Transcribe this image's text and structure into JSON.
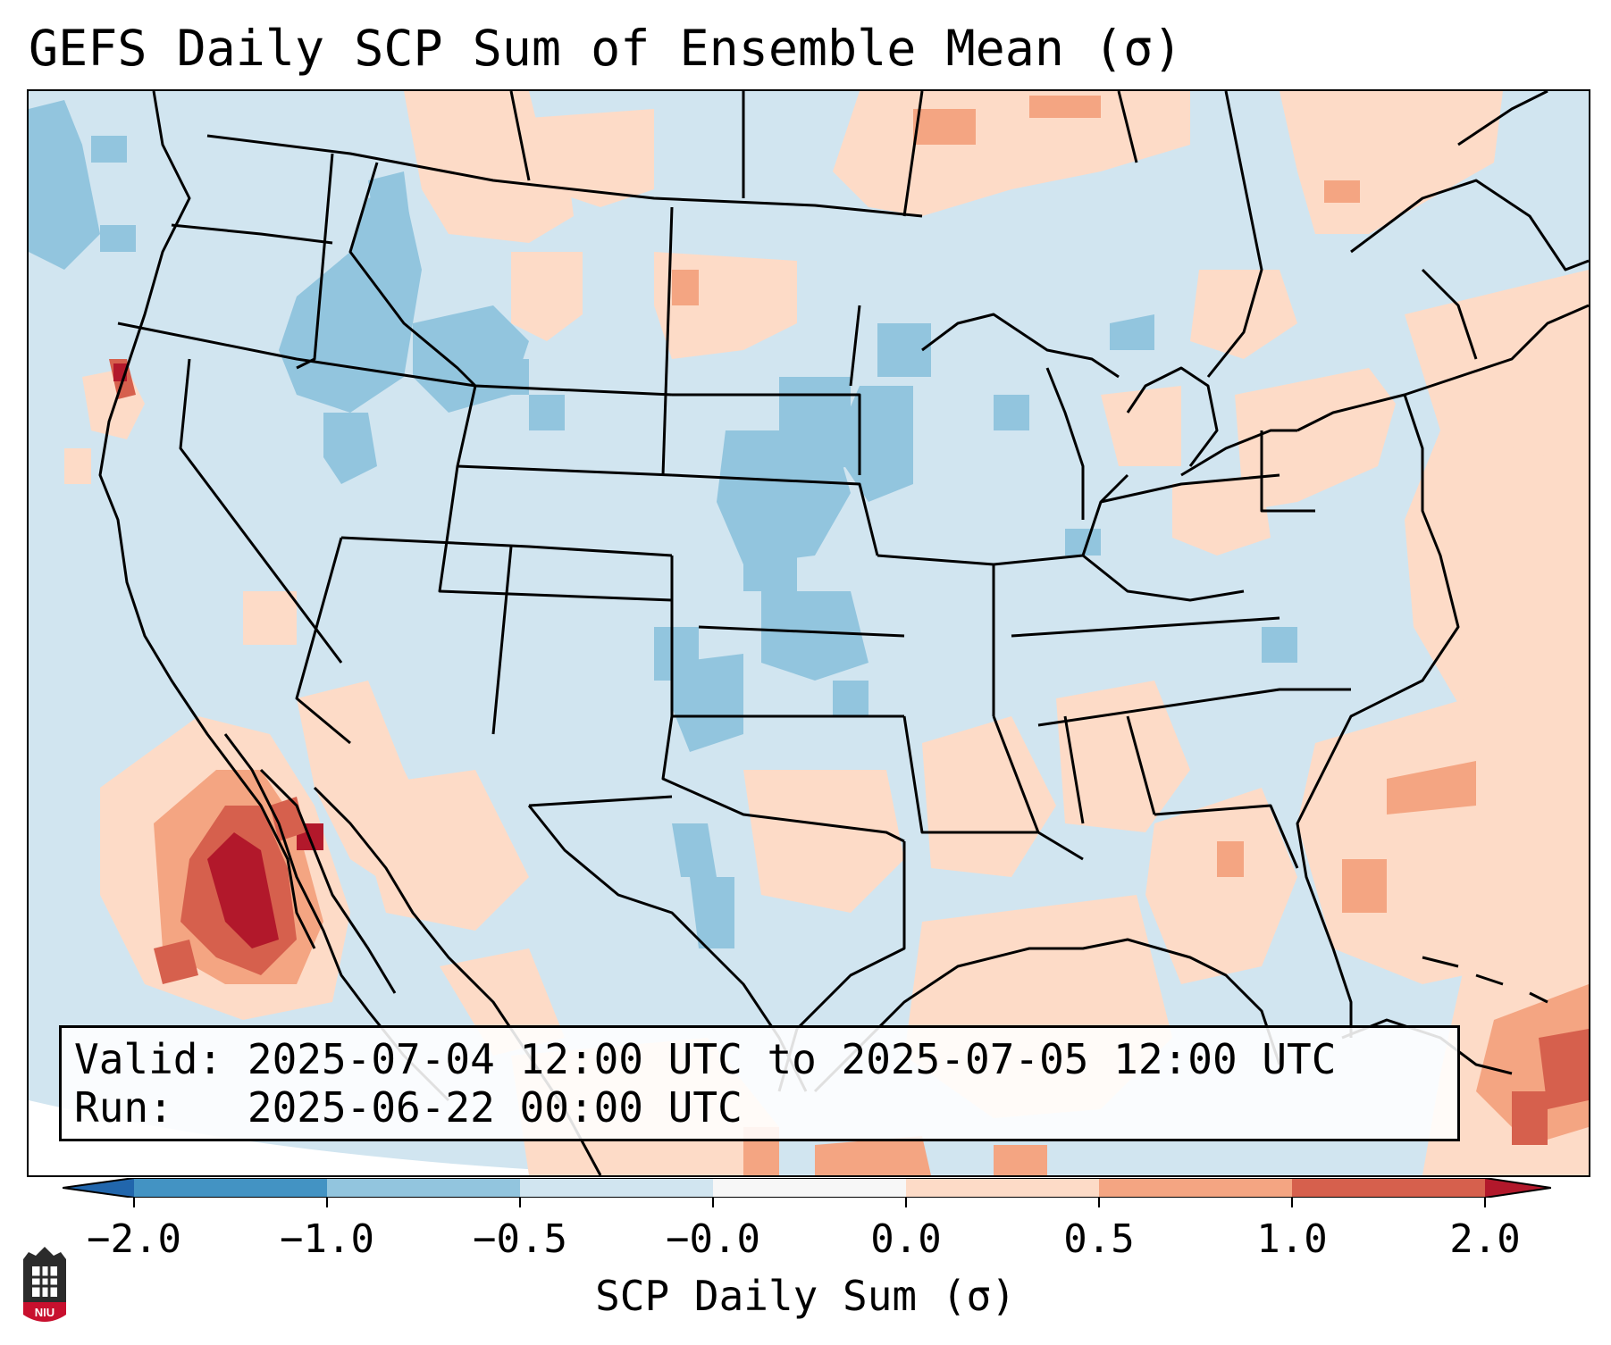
{
  "title": "GEFS Daily SCP Sum of Ensemble Mean (σ)",
  "info": {
    "valid_label": "Valid:",
    "valid_value": "2025-07-04 12:00 UTC to 2025-07-05 12:00 UTC",
    "run_label": "Run:",
    "run_value": "2025-06-22 00:00 UTC"
  },
  "colorbar": {
    "label": "SCP Daily Sum (σ)",
    "ticks": [
      "−2.0",
      "−1.0",
      "−0.5",
      "−0.0",
      "0.0",
      "0.5",
      "1.0",
      "2.0"
    ],
    "colors": [
      "#4393c3",
      "#92c5de",
      "#d1e5f0",
      "#f7f7f7",
      "#fddbc7",
      "#f4a582",
      "#d6604d",
      "#b2182b"
    ],
    "under_color": "#2166ac",
    "over_color": "#b2182b"
  },
  "logo": {
    "text": "NIU",
    "color": "#c8102e"
  },
  "colors": {
    "ocean": "#cfe2ee",
    "land_base": "#d1e5f0",
    "weak_negative": "#92c5de",
    "weak_positive": "#fddbc7",
    "moderate_positive": "#f4a582",
    "strong_positive": "#d6604d",
    "very_strong_positive": "#b2182b"
  }
}
